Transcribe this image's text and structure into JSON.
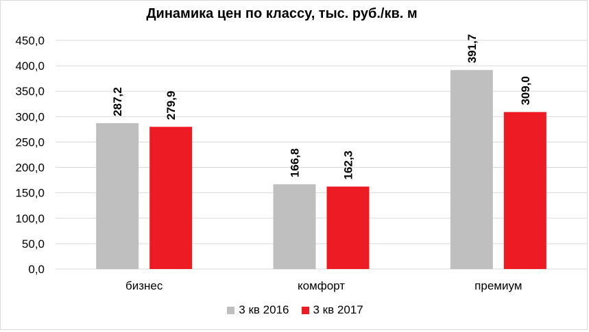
{
  "chart_data": {
    "type": "bar",
    "title": "Динамика цен по классу, тыс. руб./кв. м",
    "categories": [
      "бизнес",
      "комфорт",
      "премиум"
    ],
    "series": [
      {
        "name": "3 кв 2016",
        "color": "#bfbfbf",
        "values": [
          287.2,
          166.8,
          391.7
        ],
        "labels": [
          "287,2",
          "166,8",
          "391,7"
        ]
      },
      {
        "name": "3 кв 2017",
        "color": "#ed1c24",
        "values": [
          279.9,
          162.3,
          309.0
        ],
        "labels": [
          "279,9",
          "162,3",
          "309,0"
        ]
      }
    ],
    "ylim": [
      0,
      450
    ],
    "yticks": [
      0,
      50,
      100,
      150,
      200,
      250,
      300,
      350,
      400,
      450
    ],
    "ytick_labels": [
      "0,0",
      "50,0",
      "100,0",
      "150,0",
      "200,0",
      "250,0",
      "300,0",
      "350,0",
      "400,0",
      "450,0"
    ],
    "grid": true,
    "legend_position": "bottom",
    "gridline_color": "#d9d9d9"
  }
}
